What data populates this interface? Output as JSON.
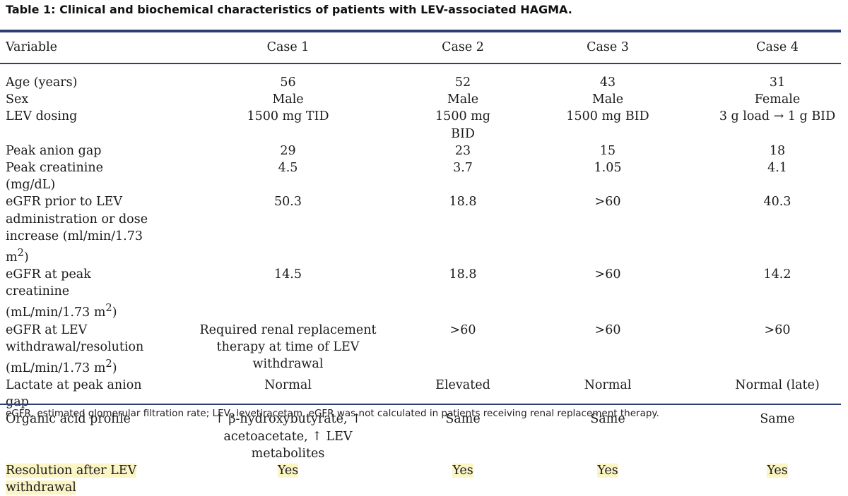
{
  "caption": "Table 1: Clinical and biochemical characteristics of patients with LEV-associated HAGMA.",
  "headers": [
    "Variable",
    "Case 1",
    "Case 2",
    "Case 3",
    "Case 4"
  ],
  "rows": [
    {
      "variable": "Age (years)",
      "values": [
        "56",
        "52",
        "43",
        "31"
      ]
    },
    {
      "variable": "Sex",
      "values": [
        "Male",
        "Male",
        "Male",
        "Female"
      ]
    },
    {
      "variable": "LEV dosing",
      "values": [
        "1500 mg TID",
        "1500 mg BID",
        "1500 mg BID",
        "3 g load → 1 g BID"
      ]
    },
    {
      "variable": "Peak anion gap",
      "values": [
        "29",
        "23",
        "15",
        "18"
      ]
    },
    {
      "variable": "Peak creatinine (mg/dL)",
      "values": [
        "4.5",
        "3.7",
        "1.05",
        "4.1"
      ]
    },
    {
      "variable_lines": [
        "eGFR prior to LEV",
        "administration or dose",
        "increase (ml/min/1.73 m"
      ],
      "variable_sup": "2",
      "variable_tail": ")",
      "values": [
        "50.3",
        "18.8",
        ">60",
        "40.3"
      ]
    },
    {
      "variable_lines": [
        "eGFR at peak creatinine",
        "(mL/min/1.73 m"
      ],
      "variable_sup": "2",
      "variable_tail": ")",
      "values": [
        "14.5",
        "18.8",
        ">60",
        "14.2"
      ]
    },
    {
      "variable_lines": [
        "eGFR at LEV",
        "withdrawal/resolution",
        "(mL/min/1.73 m"
      ],
      "variable_sup": "2",
      "variable_tail": ")",
      "values_lines": [
        [
          "Required renal replacement",
          "therapy at time of LEV",
          "withdrawal"
        ],
        [
          ">60"
        ],
        [
          ">60"
        ],
        [
          ">60"
        ]
      ]
    },
    {
      "variable": "Lactate at peak anion gap",
      "values": [
        "Normal",
        "Elevated",
        "Normal",
        "Normal (late)"
      ]
    },
    {
      "variable": "Organic acid profile",
      "values_lines": [
        [
          "↑ β-hydroxybutyrate, ↑",
          "acetoacetate, ↑ LEV",
          "metabolites"
        ],
        [
          "Same"
        ],
        [
          "Same"
        ],
        [
          "Same"
        ]
      ]
    },
    {
      "variable_lines": [
        "Resolution after LEV",
        "withdrawal"
      ],
      "values": [
        "Yes",
        "Yes",
        "Yes",
        "Yes"
      ],
      "highlighted": true
    }
  ],
  "highlight_color": "#fbf4c5",
  "rule_color": "#2c3e74",
  "footnote": "eGFR, estimated glomerular filtration rate; LEV, levetiracetam. eGFR was not calculated in patients receiving renal replacement therapy."
}
